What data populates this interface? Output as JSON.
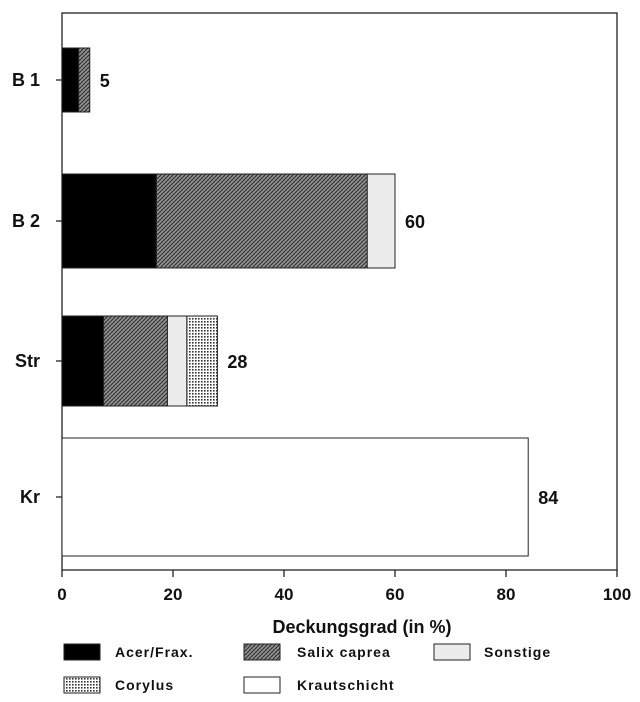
{
  "chart_data": {
    "type": "bar",
    "orientation": "horizontal",
    "stacked": true,
    "categories": [
      "B 1",
      "B 2",
      "Str",
      "Kr"
    ],
    "series": [
      {
        "name": "Acer/Frax.",
        "pattern": "solid-black",
        "values": [
          3,
          17,
          7.5,
          0
        ]
      },
      {
        "name": "Salix caprea",
        "pattern": "crosshatch",
        "values": [
          2,
          38,
          11.5,
          0
        ]
      },
      {
        "name": "Sonstige",
        "pattern": "light-gray",
        "values": [
          0,
          5,
          3.5,
          0
        ]
      },
      {
        "name": "Corylus",
        "pattern": "dotted",
        "values": [
          0,
          0,
          5.5,
          0
        ]
      },
      {
        "name": "Krautschicht",
        "pattern": "white",
        "values": [
          0,
          0,
          0,
          84
        ]
      }
    ],
    "totals": [
      "5",
      "60",
      "28",
      "84"
    ],
    "xlabel": "Deckungsgrad (in %)",
    "ylabel": "",
    "title": "",
    "xlim": [
      0,
      100
    ],
    "xticks": [
      "0",
      "20",
      "40",
      "60",
      "80",
      "100"
    ],
    "grid": false,
    "legend_position": "bottom"
  }
}
